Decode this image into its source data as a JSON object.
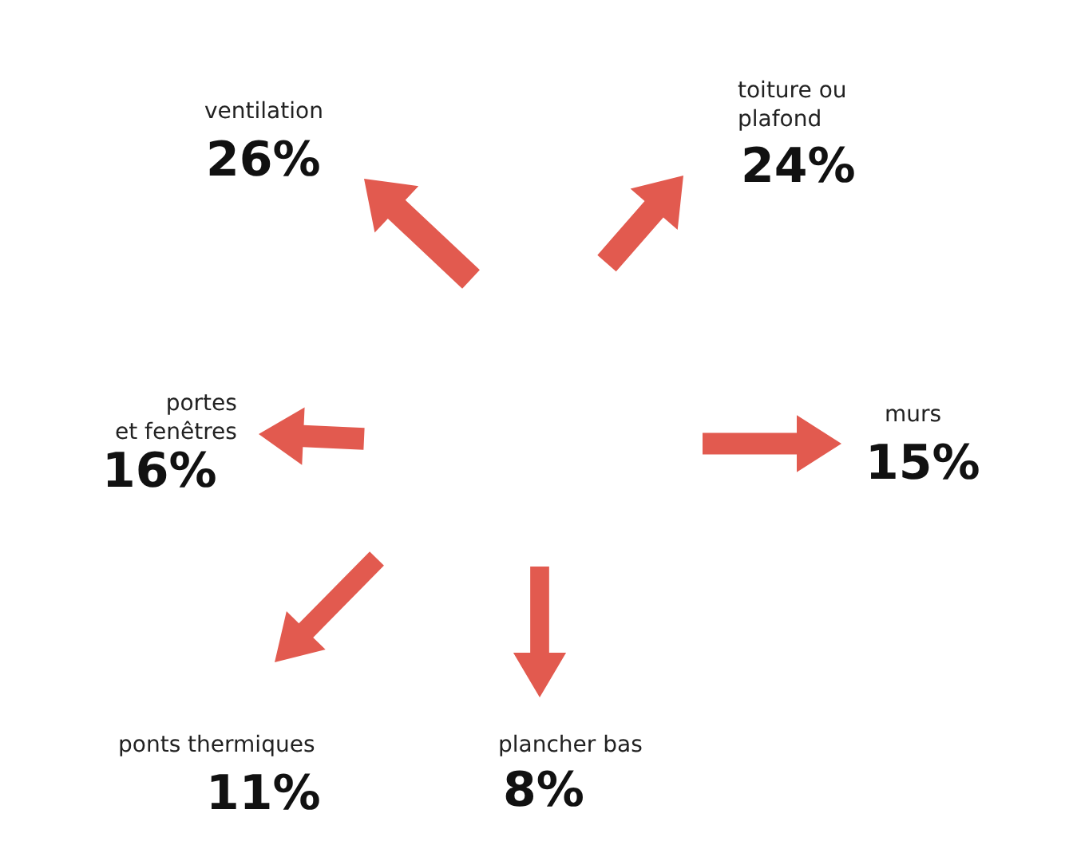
{
  "chart_data": {
    "type": "other",
    "categories": [
      "ventilation",
      "toiture ou\nplafond",
      "portes\net fenêtres",
      "murs",
      "ponts thermiques",
      "plancher bas"
    ],
    "values": [
      26,
      24,
      16,
      15,
      11,
      8
    ],
    "value_labels": [
      "26%",
      "24%",
      "16%",
      "15%",
      "11%",
      "8%"
    ],
    "color": "#e25a4f"
  }
}
